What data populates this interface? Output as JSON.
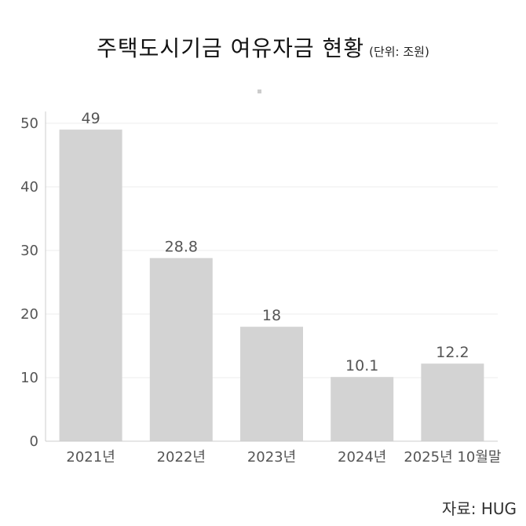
{
  "chart_data": {
    "type": "bar",
    "title": "주택도시기금 여유자금 현황",
    "unit_note": "(단위: 조원)",
    "categories": [
      "2021년",
      "2022년",
      "2023년",
      "2024년",
      "2025년 10월말"
    ],
    "values": [
      49,
      28.8,
      18,
      10.1,
      12.2
    ],
    "value_labels": [
      "49",
      "28.8",
      "18",
      "10.1",
      "12.2"
    ],
    "y_ticks": [
      0,
      10,
      20,
      30,
      40,
      50
    ],
    "ylim": [
      0,
      50
    ],
    "grid": true,
    "bar_color": "#d3d3d3",
    "legend": "none",
    "source": "자료: HUG"
  }
}
